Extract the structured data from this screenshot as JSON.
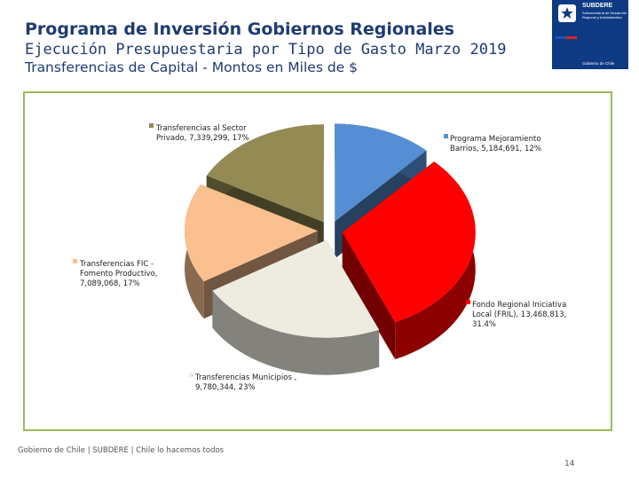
{
  "header": {
    "title": "Programa de Inversión Gobiernos Regionales",
    "subtitle": "Ejecución Presupuestaria por Tipo de Gasto Marzo 2019",
    "subtitle2": "Transferencias de Capital  - Montos en Miles de $"
  },
  "logo": {
    "brand": "SUBDERE",
    "tagline": "Subsecretaría de Desarrollo Regional y Administrativo",
    "footer": "Gobierno de Chile"
  },
  "colors": {
    "title": "#1f3b73",
    "frame": "#9bbb59",
    "logo_bg": "#0e3a84"
  },
  "chart_data": {
    "type": "pie",
    "title": "",
    "slices": [
      {
        "name": "Programa Mejoramiento Barrios",
        "value": 5184691,
        "label_lines": [
          "Programa Mejoramiento",
          "Barrios, 5,184,691, 12%"
        ],
        "color": "#558ed5"
      },
      {
        "name": "Fondo Regional Iniciativa Local (FRIL)",
        "value": 13468813,
        "label_lines": [
          "Fondo Regional Iniciativa",
          "Local (FRIL), 13,468,813,",
          "31.4%"
        ],
        "color": "#ff0000"
      },
      {
        "name": "Transferencias Municipios",
        "value": 9780344,
        "label_lines": [
          "Transferencias Municipios ,",
          "9,780,344, 23%"
        ],
        "color": "#eeece1"
      },
      {
        "name": "Transferencias FIC - Fomento Productivo",
        "value": 7089068,
        "label_lines": [
          "Transferencias FIC -",
          "Fomento Productivo,",
          "7,089,068, 17%"
        ],
        "color": "#fac090"
      },
      {
        "name": "Transferencias al Sector Privado",
        "value": 7339299,
        "label_lines": [
          "Transferencias al Sector",
          "Privado, 7,339,299, 17%"
        ],
        "color": "#948a54"
      }
    ]
  },
  "footer": {
    "text": "Gobierno de Chile | SUBDERE | Chile lo hacemos todos",
    "page": "14"
  }
}
